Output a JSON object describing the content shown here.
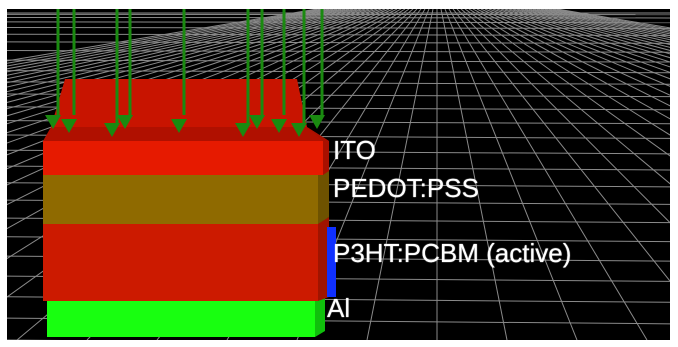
{
  "scene": {
    "background": "#000000",
    "grid_color": "#8a8a8a"
  },
  "layers": [
    {
      "id": "ito",
      "label": "ITO",
      "color": "#e61a00"
    },
    {
      "id": "pedot",
      "label": "PEDOT:PSS",
      "color": "#8f6a00"
    },
    {
      "id": "active",
      "label": "P3HT:PCBM (active)",
      "color": "#d11a00",
      "marker_color": "#1030ff"
    },
    {
      "id": "al",
      "label": "Al",
      "color": "#18ff10"
    }
  ],
  "light": {
    "arrow_color": "#1a8a10",
    "icon": "incident-light-arrows"
  }
}
